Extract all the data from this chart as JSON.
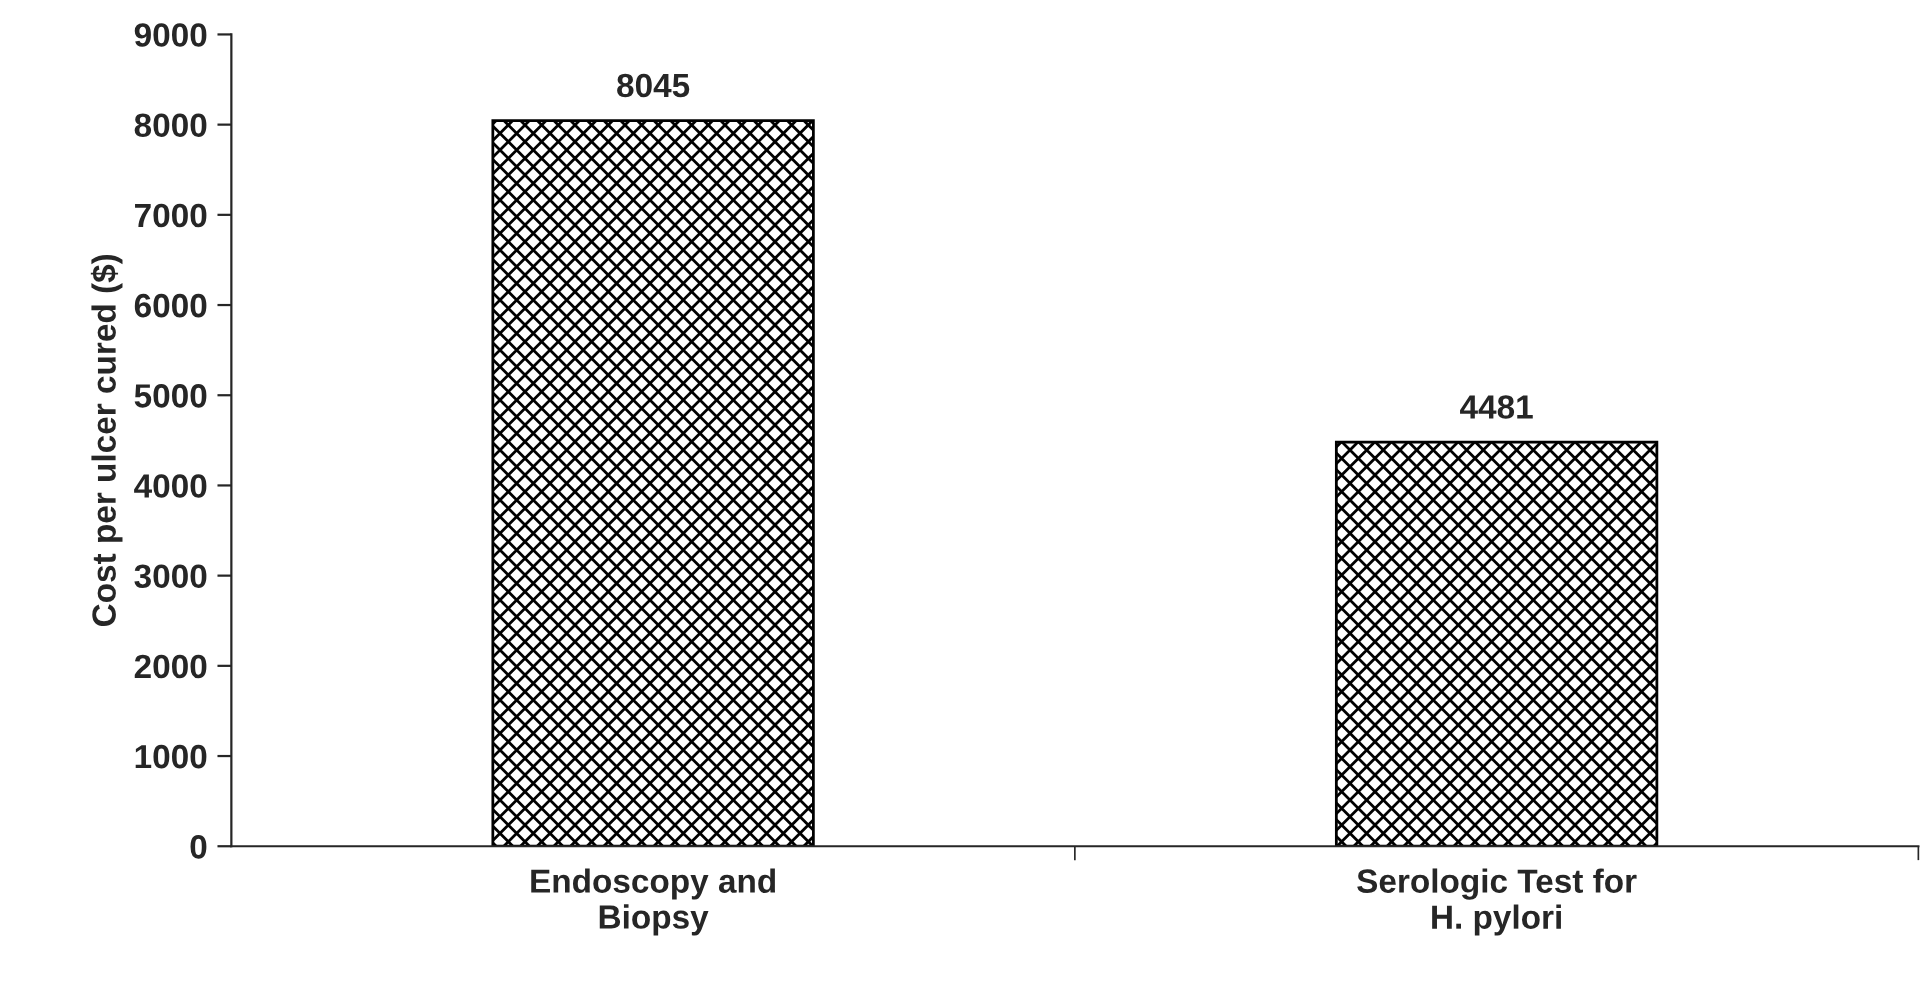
{
  "chart_data": {
    "type": "bar",
    "ylabel": "Cost per ulcer cured ($)",
    "categories": [
      "Endoscopy and\nBiopsy",
      "Serologic Test for\nH. pylori"
    ],
    "values": [
      8045,
      4481
    ],
    "color": "#000000",
    "ylim": [
      0,
      9000
    ],
    "yticks": [
      0,
      1000,
      2000,
      3000,
      4000,
      5000,
      6000,
      7000,
      8000,
      9000
    ],
    "grid": false,
    "data_labels": true
  }
}
